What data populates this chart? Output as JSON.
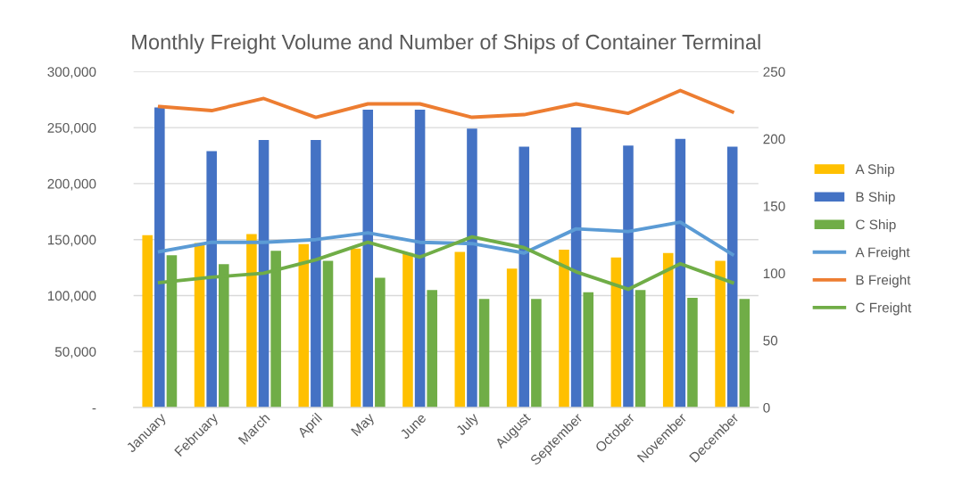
{
  "chart_data": {
    "type": "bar",
    "title": "Monthly Freight Volume and Number of Ships of Container Terminal",
    "categories": [
      "January",
      "February",
      "March",
      "April",
      "May",
      "June",
      "July",
      "August",
      "September",
      "October",
      "November",
      "December"
    ],
    "series": [
      {
        "name": "A Ship",
        "color": "#ffc000",
        "values": [
          154000,
          147000,
          155000,
          146000,
          142000,
          138000,
          139000,
          124000,
          141000,
          134000,
          138000,
          131000
        ]
      },
      {
        "name": "B Ship",
        "color": "#4472c4",
        "values": [
          268000,
          229000,
          239000,
          239000,
          266000,
          266000,
          249000,
          233000,
          250000,
          234000,
          240000,
          233000
        ]
      },
      {
        "name": "C Ship",
        "color": "#70ad47",
        "values": [
          136000,
          128000,
          140000,
          131000,
          116000,
          105000,
          97000,
          97000,
          103000,
          105000,
          98000,
          97000
        ]
      },
      {
        "name": "A Freight",
        "type": "line",
        "axis": "y2",
        "color": "#5b9bd5",
        "values": [
          116,
          123,
          123,
          125,
          130,
          123,
          122,
          115,
          133,
          131,
          138,
          114
        ]
      },
      {
        "name": "B Freight",
        "type": "line",
        "axis": "y2",
        "color": "#ed7d31",
        "values": [
          224,
          221,
          230,
          216,
          226,
          226,
          216,
          218,
          226,
          219,
          236,
          220
        ]
      },
      {
        "name": "C Freight",
        "type": "line",
        "axis": "y2",
        "color": "#70ad47",
        "values": [
          93,
          97,
          100,
          110,
          123,
          112,
          127,
          119,
          101,
          88,
          107,
          93
        ]
      }
    ],
    "ylim": [
      0,
      300000
    ],
    "yticks": [
      {
        "value": 0,
        "label": "-"
      },
      {
        "value": 50000,
        "label": "50,000"
      },
      {
        "value": 100000,
        "label": "100,000"
      },
      {
        "value": 150000,
        "label": "150,000"
      },
      {
        "value": 200000,
        "label": "200,000"
      },
      {
        "value": 250000,
        "label": "250,000"
      },
      {
        "value": 300000,
        "label": "300,000"
      }
    ],
    "y2lim": [
      0,
      250
    ],
    "y2ticks": [
      0,
      50,
      100,
      150,
      200,
      250
    ],
    "grid": "y",
    "legend": "right"
  }
}
